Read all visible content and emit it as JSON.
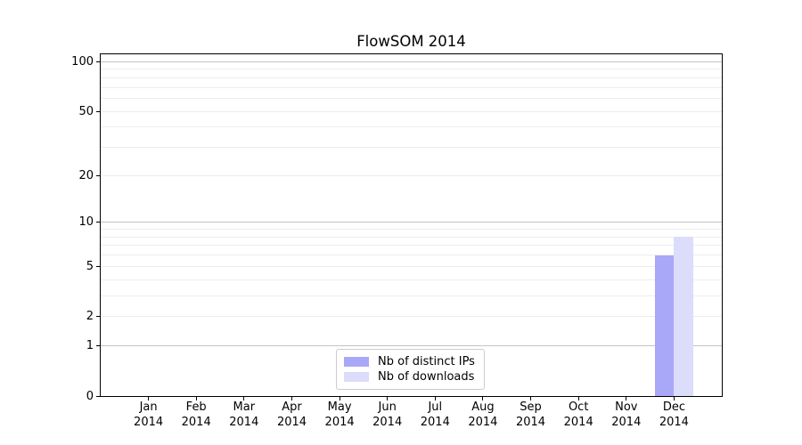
{
  "chart_data": {
    "type": "bar",
    "title": "FlowSOM 2014",
    "categories": [
      "Jan 2014",
      "Feb 2014",
      "Mar 2014",
      "Apr 2014",
      "May 2014",
      "Jun 2014",
      "Jul 2014",
      "Aug 2014",
      "Sep 2014",
      "Oct 2014",
      "Nov 2014",
      "Dec 2014"
    ],
    "month_labels": [
      "Jan",
      "Feb",
      "Mar",
      "Apr",
      "May",
      "Jun",
      "Jul",
      "Aug",
      "Sep",
      "Oct",
      "Nov",
      "Dec"
    ],
    "year_label": "2014",
    "series": [
      {
        "name": "Nb of distinct IPs",
        "color": "#a9a8f8",
        "values": [
          0,
          0,
          0,
          0,
          0,
          0,
          0,
          0,
          0,
          0,
          0,
          6
        ]
      },
      {
        "name": "Nb of downloads",
        "color": "#dcdcfb",
        "values": [
          0,
          0,
          0,
          0,
          0,
          0,
          0,
          0,
          0,
          0,
          0,
          8
        ]
      }
    ],
    "xlabel": "",
    "ylabel": "",
    "yscale": "log1p",
    "ylim": [
      0,
      111
    ],
    "yticks": [
      100,
      50,
      20,
      10,
      5,
      2,
      1,
      0
    ],
    "major_gridlines": [
      1,
      10,
      100
    ],
    "minor_gridlines": [
      2,
      3,
      4,
      5,
      6,
      7,
      8,
      9,
      20,
      30,
      40,
      50,
      60,
      70,
      80,
      90
    ],
    "grid": "horizontal",
    "legend_position": "lower center inside",
    "colors": {
      "axis": "#000000",
      "major_grid": "#c3c3c3",
      "minor_grid": "#ededed",
      "legend_border": "#cccccc",
      "background": "#ffffff"
    }
  }
}
